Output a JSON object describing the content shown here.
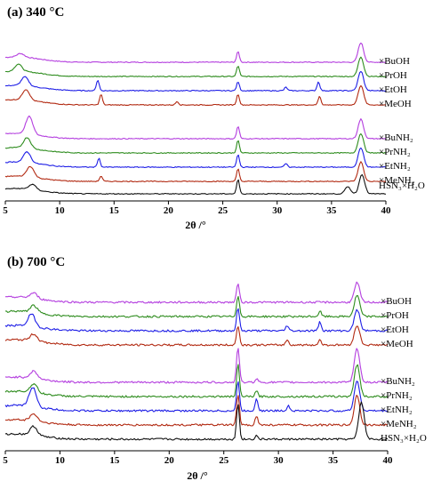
{
  "colors": {
    "black": "#111111",
    "red": "#b22a12",
    "blue": "#1e1ee6",
    "green": "#2e8c1e",
    "purple": "#b544e0"
  },
  "chart_data": [
    {
      "type": "line",
      "title": "(a) 340 °C",
      "xlabel": "2θ /°",
      "ylabel": "",
      "xlim": [
        5,
        40
      ],
      "xticks": [
        5,
        10,
        15,
        20,
        25,
        30,
        35,
        40
      ],
      "grid": false,
      "legend_placement": "right",
      "series": [
        {
          "name": "×BuOH",
          "color": "purple",
          "peaks": [
            [
              6.4,
              4
            ],
            [
              26.4,
              12
            ],
            [
              37.7,
              22
            ]
          ]
        },
        {
          "name": "×PrOH",
          "color": "green",
          "peaks": [
            [
              6.2,
              8
            ],
            [
              26.4,
              12
            ],
            [
              37.7,
              22
            ]
          ]
        },
        {
          "name": "×EtOH",
          "color": "blue",
          "peaks": [
            [
              6.8,
              10
            ],
            [
              13.5,
              12
            ],
            [
              26.4,
              10
            ],
            [
              30.8,
              4
            ],
            [
              33.8,
              10
            ],
            [
              37.7,
              22
            ]
          ]
        },
        {
          "name": "×MeOH",
          "color": "red",
          "peaks": [
            [
              6.9,
              12
            ],
            [
              13.8,
              12
            ],
            [
              20.8,
              4
            ],
            [
              26.4,
              12
            ],
            [
              33.9,
              10
            ],
            [
              37.7,
              22
            ]
          ]
        },
        {
          "name": "×BuNH₂",
          "color": "purple",
          "peaks": [
            [
              7.2,
              20
            ],
            [
              26.4,
              14
            ],
            [
              37.7,
              22
            ]
          ]
        },
        {
          "name": "×PrNH₂",
          "color": "green",
          "peaks": [
            [
              7.0,
              12
            ],
            [
              26.4,
              14
            ],
            [
              37.7,
              22
            ]
          ]
        },
        {
          "name": "×EtNH₂",
          "color": "blue",
          "peaks": [
            [
              7.0,
              12
            ],
            [
              13.6,
              10
            ],
            [
              26.4,
              14
            ],
            [
              30.8,
              4
            ],
            [
              37.7,
              22
            ]
          ]
        },
        {
          "name": "×MeNH₂",
          "color": "red",
          "peaks": [
            [
              7.3,
              12
            ],
            [
              13.8,
              6
            ],
            [
              26.4,
              14
            ],
            [
              37.7,
              22
            ]
          ]
        },
        {
          "name": "HSN₃×H₂O",
          "color": "black",
          "peaks": [
            [
              7.5,
              6
            ],
            [
              26.4,
              16
            ],
            [
              36.5,
              8
            ],
            [
              37.8,
              22
            ]
          ]
        }
      ]
    },
    {
      "type": "line",
      "title": "(b) 700 °C",
      "xlabel": "2θ /°",
      "ylabel": "",
      "xlim": [
        5,
        40
      ],
      "xticks": [
        5,
        10,
        15,
        20,
        25,
        30,
        35,
        40
      ],
      "grid": false,
      "legend_placement": "right",
      "series": [
        {
          "name": "×BuOH",
          "color": "purple",
          "peaks": [
            [
              7.6,
              6
            ],
            [
              26.3,
              22
            ],
            [
              37.2,
              22
            ]
          ]
        },
        {
          "name": "×PrOH",
          "color": "green",
          "peaks": [
            [
              7.6,
              8
            ],
            [
              26.3,
              24
            ],
            [
              33.8,
              6
            ],
            [
              37.2,
              24
            ]
          ]
        },
        {
          "name": "×EtOH",
          "color": "blue",
          "peaks": [
            [
              7.4,
              14
            ],
            [
              26.3,
              26
            ],
            [
              30.8,
              6
            ],
            [
              33.8,
              10
            ],
            [
              37.2,
              24
            ]
          ]
        },
        {
          "name": "×MeOH",
          "color": "red",
          "peaks": [
            [
              7.6,
              8
            ],
            [
              26.3,
              22
            ],
            [
              30.8,
              6
            ],
            [
              33.8,
              6
            ],
            [
              37.2,
              22
            ]
          ]
        },
        {
          "name": "×BuNH₂",
          "color": "purple",
          "peaks": [
            [
              7.6,
              8
            ],
            [
              26.3,
              40
            ],
            [
              28.0,
              4
            ],
            [
              37.2,
              38
            ]
          ]
        },
        {
          "name": "×PrNH₂",
          "color": "green",
          "peaks": [
            [
              7.6,
              10
            ],
            [
              26.3,
              36
            ],
            [
              28.0,
              6
            ],
            [
              37.2,
              36
            ]
          ]
        },
        {
          "name": "×EtNH₂",
          "color": "blue",
          "peaks": [
            [
              7.5,
              22
            ],
            [
              26.3,
              34
            ],
            [
              28.0,
              14
            ],
            [
              30.9,
              6
            ],
            [
              37.2,
              34
            ]
          ]
        },
        {
          "name": "×MeNH₂",
          "color": "red",
          "peaks": [
            [
              7.6,
              8
            ],
            [
              26.3,
              34
            ],
            [
              28.0,
              10
            ],
            [
              37.2,
              34
            ]
          ]
        },
        {
          "name": "HSN₃×H₂O",
          "color": "black",
          "peaks": [
            [
              7.6,
              10
            ],
            [
              26.3,
              40
            ],
            [
              28.0,
              4
            ],
            [
              37.6,
              42
            ]
          ]
        }
      ]
    }
  ]
}
